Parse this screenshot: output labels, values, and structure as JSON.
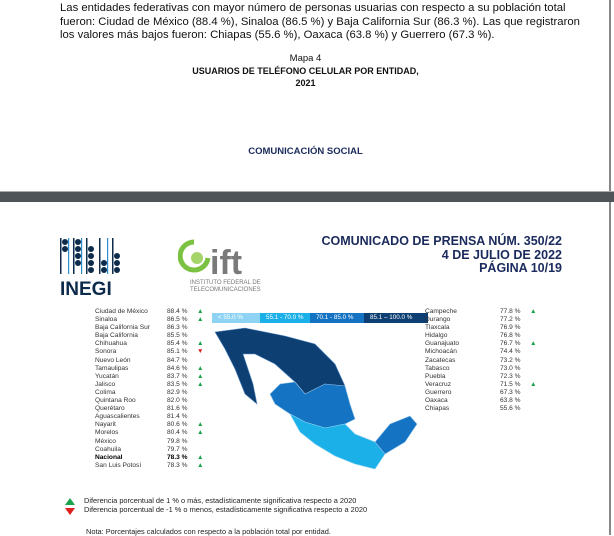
{
  "page1": {
    "paragraph": "Las entidades federativas con mayor número de personas usuarias con respecto a su población total fueron: Ciudad de México (88.4 %), Sinaloa (86.5 %) y Baja California Sur (86.3 %). Las que registraron los valores más bajos fueron: Chiapas (55.6 %), Oaxaca (63.8 %) y Guerrero (67.3 %).",
    "map_label": "Mapa 4",
    "map_title": "Usuarios de teléfono celular por entidad,",
    "map_year": "2021",
    "footer": "COMUNICACIÓN SOCIAL"
  },
  "page2": {
    "header": [
      "COMUNICADO DE PRENSA NÚM. 350/22",
      "4 DE JULIO DE 2022",
      "PÁGINA 10/19"
    ],
    "logo_inegi": "INEGI",
    "logo_ift": "ift",
    "ift_subtitle": "INSTITUTO FEDERAL DE TELECOMUNICACIONES",
    "legend": [
      {
        "label": "< 55.0 %",
        "color": "#8fd3f4"
      },
      {
        "label": "55.1 - 70.0 %",
        "color": "#1bb0e8"
      },
      {
        "label": "70.1 - 85.0 %",
        "color": "#1473c2"
      },
      {
        "label": "85.1 – 100.0 %",
        "color": "#0d3f73"
      }
    ],
    "left_table": [
      {
        "name": "Ciudad de México",
        "value": "88.4 %",
        "mark": "up"
      },
      {
        "name": "Sinaloa",
        "value": "86.5 %",
        "mark": "up"
      },
      {
        "name": "Baja California Sur",
        "value": "86.3 %",
        "mark": ""
      },
      {
        "name": "Baja California",
        "value": "85.5 %",
        "mark": ""
      },
      {
        "name": "Chihuahua",
        "value": "85.4 %",
        "mark": "up"
      },
      {
        "name": "Sonora",
        "value": "85.1 %",
        "mark": "down"
      },
      {
        "name": "Nuevo León",
        "value": "84.7 %",
        "mark": ""
      },
      {
        "name": "Tamaulipas",
        "value": "84.6 %",
        "mark": "up"
      },
      {
        "name": "Yucatán",
        "value": "83.7 %",
        "mark": "up"
      },
      {
        "name": "Jalisco",
        "value": "83.5 %",
        "mark": "up"
      },
      {
        "name": "Colima",
        "value": "82.9 %",
        "mark": ""
      },
      {
        "name": "Quintana Roo",
        "value": "82.0 %",
        "mark": ""
      },
      {
        "name": "Querétaro",
        "value": "81.6 %",
        "mark": ""
      },
      {
        "name": "Aguascalientes",
        "value": "81.4 %",
        "mark": ""
      },
      {
        "name": "Nayarit",
        "value": "80.6 %",
        "mark": "up"
      },
      {
        "name": "Morelos",
        "value": "80.4 %",
        "mark": "up"
      },
      {
        "name": "México",
        "value": "79.8 %",
        "mark": ""
      },
      {
        "name": "Coahuila",
        "value": "79.7 %",
        "mark": ""
      },
      {
        "name": "Nacional",
        "value": "78.3 %",
        "mark": "up",
        "bold": true
      },
      {
        "name": "San Luis Potosí",
        "value": "78.3 %",
        "mark": "up"
      }
    ],
    "right_table": [
      {
        "name": "Campeche",
        "value": "77.8 %",
        "mark": "up"
      },
      {
        "name": "Durango",
        "value": "77.2 %",
        "mark": ""
      },
      {
        "name": "Tlaxcala",
        "value": "76.9 %",
        "mark": ""
      },
      {
        "name": "Hidalgo",
        "value": "76.8 %",
        "mark": ""
      },
      {
        "name": "Guanajuato",
        "value": "76.7 %",
        "mark": "up"
      },
      {
        "name": "Michoacán",
        "value": "74.4 %",
        "mark": ""
      },
      {
        "name": "Zacatecas",
        "value": "73.2 %",
        "mark": ""
      },
      {
        "name": "Tabasco",
        "value": "73.0 %",
        "mark": ""
      },
      {
        "name": "Puebla",
        "value": "72.3 %",
        "mark": ""
      },
      {
        "name": "Veracruz",
        "value": "71.5 %",
        "mark": "up"
      },
      {
        "name": "Guerrero",
        "value": "67.3 %",
        "mark": ""
      },
      {
        "name": "Oaxaca",
        "value": "63.8 %",
        "mark": ""
      },
      {
        "name": "Chiapas",
        "value": "55.6 %",
        "mark": ""
      }
    ],
    "notes": [
      "Diferencia porcentual de 1 % o más, estadísticamente significativa respecto a 2020",
      "Diferencia porcentual de -1 % o menos, estadísticamente significativa respecto a 2020"
    ],
    "footnote": "Nota: Porcentajes calculados con respecto a la población total por entidad."
  }
}
